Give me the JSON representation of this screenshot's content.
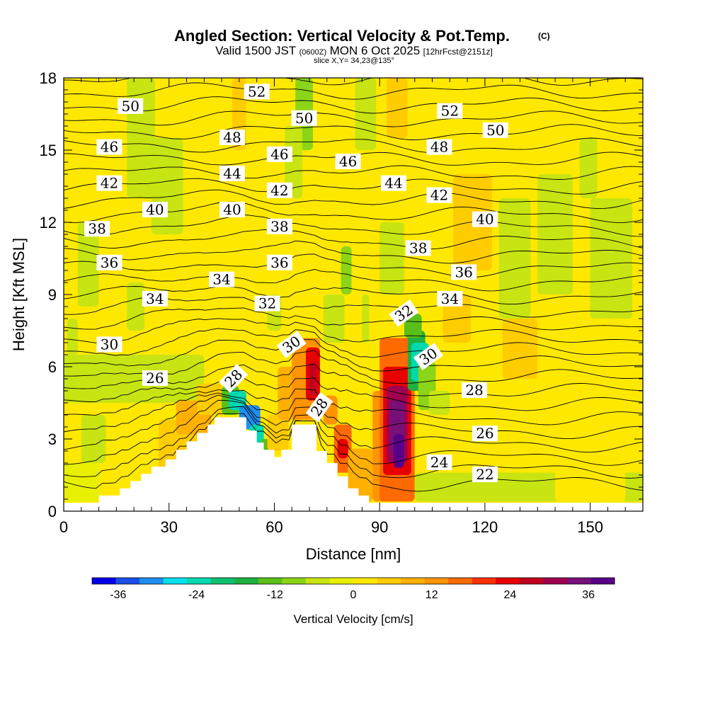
{
  "chart_data": {
    "type": "contour-cross-section",
    "title": "Angled Section: Vertical Velocity & Pot.Temp.",
    "title_mark": "(C)",
    "subtitle_prefix": "Valid 1500 JST",
    "subtitle_utc": "(0600Z)",
    "subtitle_date": "MON 6 Oct 2025",
    "subtitle_run": "[12hrFcst@2151z]",
    "slice_label": "slice X,Y= 34,23@135°",
    "xlabel": "Distance [nm]",
    "ylabel": "Height [Kft MSL]",
    "xlim": [
      0,
      165
    ],
    "ylim": [
      0,
      18
    ],
    "x_ticks": [
      "0",
      "30",
      "60",
      "90",
      "120",
      "150"
    ],
    "y_ticks": [
      "0",
      "3",
      "6",
      "9",
      "12",
      "15",
      "18"
    ],
    "colorbar": {
      "label": "Vertical Velocity [cm/s]",
      "ticks": [
        "-36",
        "-24",
        "-12",
        "0",
        "12",
        "24",
        "36"
      ],
      "min": -40,
      "max": 40,
      "colors": [
        "#0000e8",
        "#1a4fe8",
        "#1e8ef0",
        "#00e0ef",
        "#00d8b0",
        "#10c070",
        "#20b040",
        "#5ac018",
        "#8cd418",
        "#c8e412",
        "#e8f000",
        "#ffe800",
        "#ffcc00",
        "#ffb000",
        "#ff9400",
        "#ff6a00",
        "#ff3000",
        "#e80000",
        "#c00020",
        "#a00050",
        "#78107a",
        "#580088"
      ]
    },
    "terrain": [
      [
        0,
        0.35
      ],
      [
        10,
        0.35
      ],
      [
        10,
        0.65
      ],
      [
        16,
        0.65
      ],
      [
        16,
        0.95
      ],
      [
        19,
        0.95
      ],
      [
        19,
        1.25
      ],
      [
        22,
        1.25
      ],
      [
        22,
        1.55
      ],
      [
        25,
        1.55
      ],
      [
        25,
        1.85
      ],
      [
        29,
        1.85
      ],
      [
        29,
        2.15
      ],
      [
        32,
        2.15
      ],
      [
        32,
        2.55
      ],
      [
        35,
        2.55
      ],
      [
        35,
        2.9
      ],
      [
        38,
        2.9
      ],
      [
        38,
        3.25
      ],
      [
        41,
        3.25
      ],
      [
        41,
        3.6
      ],
      [
        43,
        3.6
      ],
      [
        43,
        3.9
      ],
      [
        52,
        3.9
      ],
      [
        52,
        3.35
      ],
      [
        55,
        3.35
      ],
      [
        55,
        2.85
      ],
      [
        57,
        2.85
      ],
      [
        57,
        2.55
      ],
      [
        60,
        2.55
      ],
      [
        60,
        2.25
      ],
      [
        62,
        2.25
      ],
      [
        62,
        2.55
      ],
      [
        65,
        2.55
      ],
      [
        65,
        3.6
      ],
      [
        72,
        3.6
      ],
      [
        72,
        2.5
      ],
      [
        75,
        2.5
      ],
      [
        75,
        2.0
      ],
      [
        78,
        2.0
      ],
      [
        78,
        1.45
      ],
      [
        81,
        1.45
      ],
      [
        81,
        0.95
      ],
      [
        84,
        0.95
      ],
      [
        84,
        0.65
      ],
      [
        87,
        0.65
      ],
      [
        87,
        0.35
      ],
      [
        165,
        0.35
      ]
    ],
    "theta_labels": [
      {
        "t": "50",
        "x": 19,
        "y": 16.8,
        "r": 0
      },
      {
        "t": "52",
        "x": 55,
        "y": 17.4,
        "r": 0
      },
      {
        "t": "50",
        "x": 68.5,
        "y": 16.3,
        "r": 0
      },
      {
        "t": "52",
        "x": 110,
        "y": 16.6,
        "r": 0
      },
      {
        "t": "50",
        "x": 123,
        "y": 15.8,
        "r": 0
      },
      {
        "t": "48",
        "x": 48,
        "y": 15.5,
        "r": 0
      },
      {
        "t": "48",
        "x": 107,
        "y": 15.1,
        "r": 0
      },
      {
        "t": "46",
        "x": 13,
        "y": 15.1,
        "r": 0
      },
      {
        "t": "46",
        "x": 61.5,
        "y": 14.8,
        "r": 0
      },
      {
        "t": "46",
        "x": 81,
        "y": 14.5,
        "r": 0
      },
      {
        "t": "44",
        "x": 48,
        "y": 14.0,
        "r": 0
      },
      {
        "t": "44",
        "x": 94,
        "y": 13.6,
        "r": 0
      },
      {
        "t": "42",
        "x": 13,
        "y": 13.6,
        "r": 0
      },
      {
        "t": "42",
        "x": 61.5,
        "y": 13.3,
        "r": 0
      },
      {
        "t": "42",
        "x": 107,
        "y": 13.1,
        "r": 0
      },
      {
        "t": "40",
        "x": 26,
        "y": 12.5,
        "r": 0
      },
      {
        "t": "40",
        "x": 48,
        "y": 12.5,
        "r": 0
      },
      {
        "t": "40",
        "x": 120,
        "y": 12.1,
        "r": 0
      },
      {
        "t": "38",
        "x": 9.5,
        "y": 11.7,
        "r": 0
      },
      {
        "t": "38",
        "x": 61.5,
        "y": 11.8,
        "r": 0
      },
      {
        "t": "38",
        "x": 101,
        "y": 10.9,
        "r": 0
      },
      {
        "t": "36",
        "x": 13,
        "y": 10.3,
        "r": 0
      },
      {
        "t": "36",
        "x": 61.5,
        "y": 10.3,
        "r": 0
      },
      {
        "t": "36",
        "x": 114,
        "y": 9.9,
        "r": 0
      },
      {
        "t": "34",
        "x": 45,
        "y": 9.6,
        "r": 0
      },
      {
        "t": "34",
        "x": 26,
        "y": 8.8,
        "r": 0
      },
      {
        "t": "34",
        "x": 110,
        "y": 8.8,
        "r": 0
      },
      {
        "t": "32",
        "x": 58,
        "y": 8.6,
        "r": 0
      },
      {
        "t": "32",
        "x": 97,
        "y": 8.2,
        "r": -35
      },
      {
        "t": "30",
        "x": 13,
        "y": 6.9,
        "r": 0
      },
      {
        "t": "30",
        "x": 65,
        "y": 6.9,
        "r": -35
      },
      {
        "t": "30",
        "x": 104,
        "y": 6.4,
        "r": -35
      },
      {
        "t": "28",
        "x": 48.5,
        "y": 5.5,
        "r": -45
      },
      {
        "t": "28",
        "x": 73,
        "y": 4.3,
        "r": -55
      },
      {
        "t": "28",
        "x": 117,
        "y": 5.0,
        "r": 0
      },
      {
        "t": "26",
        "x": 26,
        "y": 5.5,
        "r": 0
      },
      {
        "t": "26",
        "x": 120,
        "y": 3.2,
        "r": 0
      },
      {
        "t": "24",
        "x": 107,
        "y": 2.0,
        "r": 0
      },
      {
        "t": "22",
        "x": 120,
        "y": 1.5,
        "r": 0
      }
    ],
    "velocity_cells": [
      {
        "x": [
          0,
          165
        ],
        "y": [
          0,
          18
        ],
        "v": 0
      },
      {
        "x": [
          18,
          26
        ],
        "y": [
          13,
          18
        ],
        "v": -4
      },
      {
        "x": [
          25,
          34
        ],
        "y": [
          11.5,
          15.5
        ],
        "v": -5
      },
      {
        "x": [
          4,
          10
        ],
        "y": [
          8.5,
          12
        ],
        "v": -5
      },
      {
        "x": [
          1,
          4
        ],
        "y": [
          6.5,
          8
        ],
        "v": -6
      },
      {
        "x": [
          18,
          23
        ],
        "y": [
          7.5,
          9.5
        ],
        "v": -5
      },
      {
        "x": [
          44,
          48
        ],
        "y": [
          16,
          18
        ],
        "v": 3
      },
      {
        "x": [
          48,
          52
        ],
        "y": [
          15,
          18
        ],
        "v": 6
      },
      {
        "x": [
          66,
          71
        ],
        "y": [
          15,
          18
        ],
        "v": -10
      },
      {
        "x": [
          63,
          68
        ],
        "y": [
          13,
          16
        ],
        "v": -5
      },
      {
        "x": [
          83,
          89
        ],
        "y": [
          15,
          18
        ],
        "v": -5
      },
      {
        "x": [
          92,
          98
        ],
        "y": [
          15.5,
          18
        ],
        "v": 6
      },
      {
        "x": [
          124,
          133
        ],
        "y": [
          8,
          13
        ],
        "v": -4
      },
      {
        "x": [
          135,
          145
        ],
        "y": [
          9,
          14
        ],
        "v": -5
      },
      {
        "x": [
          150,
          162
        ],
        "y": [
          8,
          13
        ],
        "v": -5
      },
      {
        "x": [
          147,
          152
        ],
        "y": [
          13,
          15.5
        ],
        "v": -4
      },
      {
        "x": [
          111,
          122
        ],
        "y": [
          10,
          14
        ],
        "v": 5
      },
      {
        "x": [
          108,
          116
        ],
        "y": [
          7,
          9
        ],
        "v": 5
      },
      {
        "x": [
          125,
          135
        ],
        "y": [
          5.5,
          8
        ],
        "v": 5
      },
      {
        "x": [
          90,
          97
        ],
        "y": [
          9,
          12
        ],
        "v": -4
      },
      {
        "x": [
          79,
          82
        ],
        "y": [
          9,
          11
        ],
        "v": -10
      },
      {
        "x": [
          74,
          80
        ],
        "y": [
          7,
          9
        ],
        "v": -6
      },
      {
        "x": [
          85,
          87
        ],
        "y": [
          7,
          9
        ],
        "v": -6
      },
      {
        "x": [
          58,
          62
        ],
        "y": [
          7.5,
          9
        ],
        "v": -5
      },
      {
        "x": [
          0,
          40
        ],
        "y": [
          4.5,
          6.5
        ],
        "v": -4
      },
      {
        "x": [
          5,
          12
        ],
        "y": [
          2,
          4
        ],
        "v": -7
      },
      {
        "x": [
          0,
          10
        ],
        "y": [
          0.4,
          2
        ],
        "v": -3
      },
      {
        "x": [
          27,
          40
        ],
        "y": [
          1.5,
          3.8
        ],
        "v": 6
      },
      {
        "x": [
          32,
          42
        ],
        "y": [
          3.2,
          4.6
        ],
        "v": 8
      },
      {
        "x": [
          38,
          45
        ],
        "y": [
          4,
          5.3
        ],
        "v": 6
      },
      {
        "x": [
          45,
          50
        ],
        "y": [
          4,
          5.2
        ],
        "v": -12
      },
      {
        "x": [
          47,
          52
        ],
        "y": [
          4.2,
          5
        ],
        "v": -24
      },
      {
        "x": [
          50,
          56
        ],
        "y": [
          3.4,
          4.4
        ],
        "v": -30
      },
      {
        "x": [
          53,
          57
        ],
        "y": [
          2.6,
          3.6
        ],
        "v": -24
      },
      {
        "x": [
          56,
          60
        ],
        "y": [
          2.2,
          3
        ],
        "v": -14
      },
      {
        "x": [
          58,
          64
        ],
        "y": [
          2.5,
          4
        ],
        "v": 4
      },
      {
        "x": [
          61,
          70
        ],
        "y": [
          3.8,
          6
        ],
        "v": 8
      },
      {
        "x": [
          65,
          73
        ],
        "y": [
          3.8,
          7.2
        ],
        "v": 12
      },
      {
        "x": [
          69,
          73
        ],
        "y": [
          4.6,
          6.8
        ],
        "v": 22
      },
      {
        "x": [
          70,
          72
        ],
        "y": [
          4.8,
          6.2
        ],
        "v": 28
      },
      {
        "x": [
          74,
          78
        ],
        "y": [
          3.6,
          4.8
        ],
        "v": 12
      },
      {
        "x": [
          77,
          82
        ],
        "y": [
          1.6,
          3.6
        ],
        "v": 16
      },
      {
        "x": [
          78,
          81
        ],
        "y": [
          2.2,
          3
        ],
        "v": 24
      },
      {
        "x": [
          81,
          88
        ],
        "y": [
          0.4,
          2.6
        ],
        "v": 8
      },
      {
        "x": [
          88,
          92
        ],
        "y": [
          0.4,
          5
        ],
        "v": 12
      },
      {
        "x": [
          90,
          100
        ],
        "y": [
          0.4,
          7.2
        ],
        "v": 18
      },
      {
        "x": [
          91,
          99
        ],
        "y": [
          1.5,
          6
        ],
        "v": 24
      },
      {
        "x": [
          92,
          98
        ],
        "y": [
          2,
          5.2
        ],
        "v": 30
      },
      {
        "x": [
          93,
          97
        ],
        "y": [
          2.4,
          4.6
        ],
        "v": 36
      },
      {
        "x": [
          94,
          97
        ],
        "y": [
          1.8,
          3.2
        ],
        "v": 40
      },
      {
        "x": [
          98,
          103
        ],
        "y": [
          5,
          7.5
        ],
        "v": -18
      },
      {
        "x": [
          99,
          104
        ],
        "y": [
          5.4,
          7
        ],
        "v": -24
      },
      {
        "x": [
          101,
          106
        ],
        "y": [
          4.2,
          6.2
        ],
        "v": -10
      },
      {
        "x": [
          97,
          102
        ],
        "y": [
          7.2,
          8.2
        ],
        "v": -12
      },
      {
        "x": [
          104,
          110
        ],
        "y": [
          4,
          5
        ],
        "v": -6
      },
      {
        "x": [
          100,
          165
        ],
        "y": [
          0.4,
          1.6
        ],
        "v": -4
      },
      {
        "x": [
          140,
          160
        ],
        "y": [
          0.4,
          2.2
        ],
        "v": 3
      }
    ]
  }
}
